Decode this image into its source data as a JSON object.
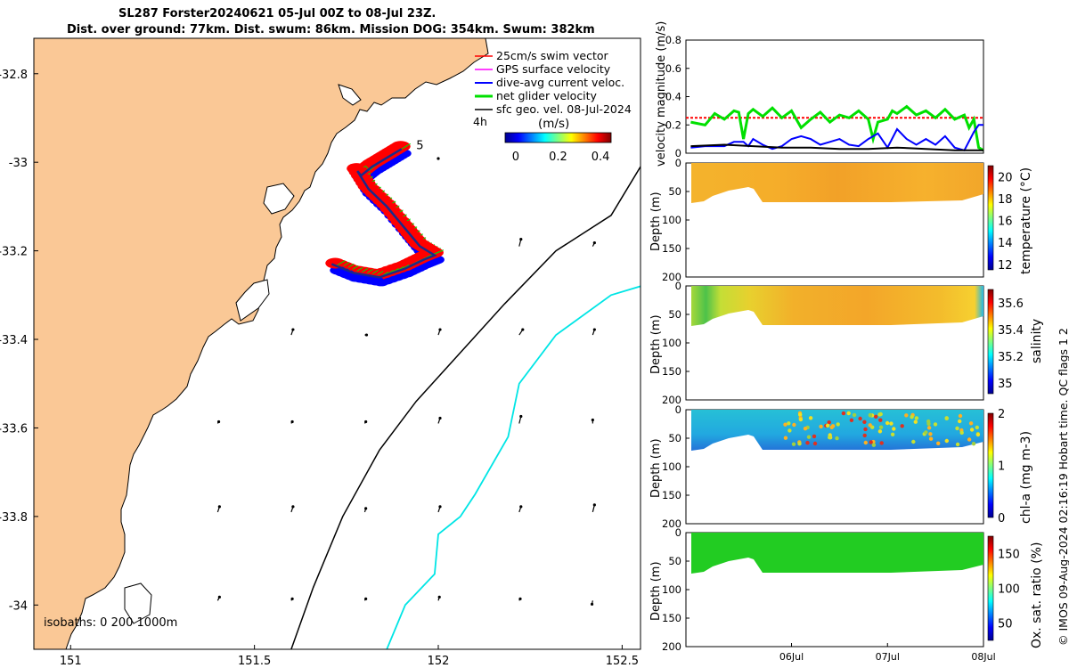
{
  "title": {
    "line1": "SL287 Forster20240621 05-Jul 00Z to 08-Jul 23Z.",
    "line2": "Dist. over ground: 77km. Dist. swum: 86km. Mission DOG: 354km. Swum: 382km"
  },
  "credit": "© IMOS 09-Aug-2024 02:16:19 Hobart time. QC flags 1  2",
  "colors": {
    "land": "#fac896",
    "swim": "#ff0000",
    "gps": "#ff00ff",
    "diveavg": "#0000ff",
    "netglider": "#00e000",
    "geo": "#000000",
    "isobath200": "#000000",
    "isobath1000": "#00e5e5",
    "track": "#1a2a8a"
  },
  "chart_data": [
    {
      "type": "map",
      "name": "glider-track-map",
      "xlim": [
        150.9,
        152.55
      ],
      "ylim": [
        -34.1,
        -32.72
      ],
      "xticks": [
        151,
        151.5,
        152,
        152.5
      ],
      "xtick_labels": [
        "151",
        "151.5",
        "152",
        "152.5"
      ],
      "yticks": [
        -32.8,
        -33,
        -33.2,
        -33.4,
        -33.6,
        -33.8,
        -34
      ],
      "ytick_labels": [
        "-32.8",
        "-33",
        "-33.2",
        "-33.4",
        "-33.6",
        "-33.8",
        "-34"
      ],
      "legend": [
        {
          "key": "swim",
          "label": "25cm/s swim vector"
        },
        {
          "key": "gps",
          "label": "GPS surface velocity"
        },
        {
          "key": "diveavg",
          "label": "dive-avg current veloc."
        },
        {
          "key": "netglider",
          "label": "net glider velocity"
        },
        {
          "key": "geo",
          "label": "sfc geo. vel. 08-Jul-2024"
        }
      ],
      "legend_placement": "top-right",
      "colorbar": {
        "label": "(m/s)",
        "prefix": "4h",
        "ticks": [
          0,
          0.2,
          0.4
        ],
        "tick_labels": [
          "0",
          "0.2",
          "0.4"
        ],
        "range": [
          -0.05,
          0.45
        ]
      },
      "track_labels": [
        {
          "text": "5",
          "lon": 151.94,
          "lat": -32.97
        }
      ],
      "isobaths_label": "isobaths: 0   200  1000m",
      "track": [
        [
          151.9,
          -32.97
        ],
        [
          151.86,
          -32.99
        ],
        [
          151.82,
          -33.01
        ],
        [
          151.79,
          -33.03
        ],
        [
          151.78,
          -33.02
        ],
        [
          151.81,
          -33.06
        ],
        [
          151.86,
          -33.1
        ],
        [
          151.91,
          -33.15
        ],
        [
          151.95,
          -33.19
        ],
        [
          151.99,
          -33.21
        ],
        [
          151.96,
          -33.22
        ],
        [
          151.91,
          -33.24
        ],
        [
          151.84,
          -33.26
        ],
        [
          151.77,
          -33.25
        ],
        [
          151.71,
          -33.23
        ]
      ],
      "isobath_200": [
        [
          151.6,
          -34.1
        ],
        [
          151.66,
          -33.96
        ],
        [
          151.74,
          -33.8
        ],
        [
          151.84,
          -33.65
        ],
        [
          151.94,
          -33.54
        ],
        [
          152.06,
          -33.43
        ],
        [
          152.18,
          -33.32
        ],
        [
          152.32,
          -33.2
        ],
        [
          152.47,
          -33.12
        ],
        [
          152.55,
          -33.01
        ]
      ],
      "isobath_1000": [
        [
          151.86,
          -34.1
        ],
        [
          151.91,
          -34.0
        ],
        [
          151.99,
          -33.93
        ],
        [
          152.0,
          -33.84
        ],
        [
          152.06,
          -33.8
        ],
        [
          152.1,
          -33.75
        ],
        [
          152.19,
          -33.62
        ],
        [
          152.22,
          -33.5
        ],
        [
          152.32,
          -33.39
        ],
        [
          152.47,
          -33.3
        ],
        [
          152.55,
          -33.28
        ]
      ],
      "geo_vectors": [
        {
          "lon": 152.0,
          "lat": -32.99,
          "u": 0.0,
          "v": -0.02
        },
        {
          "lon": 152.42,
          "lat": -33.19,
          "u": 0.05,
          "v": 0.1
        },
        {
          "lon": 152.22,
          "lat": -33.19,
          "u": 0.05,
          "v": 0.2
        },
        {
          "lon": 151.6,
          "lat": -33.39,
          "u": 0.05,
          "v": 0.15
        },
        {
          "lon": 151.8,
          "lat": -33.39,
          "u": 0.05,
          "v": 0.0
        },
        {
          "lon": 152.0,
          "lat": -33.39,
          "u": 0.05,
          "v": 0.15
        },
        {
          "lon": 152.22,
          "lat": -33.39,
          "u": 0.1,
          "v": 0.15
        },
        {
          "lon": 152.42,
          "lat": -33.39,
          "u": 0.05,
          "v": 0.15
        },
        {
          "lon": 151.4,
          "lat": -33.59,
          "u": 0.03,
          "v": 0.05
        },
        {
          "lon": 151.6,
          "lat": -33.59,
          "u": 0.03,
          "v": 0.05
        },
        {
          "lon": 151.8,
          "lat": -33.59,
          "u": 0.03,
          "v": 0.05
        },
        {
          "lon": 152.0,
          "lat": -33.59,
          "u": 0.05,
          "v": 0.15
        },
        {
          "lon": 152.22,
          "lat": -33.59,
          "u": 0.05,
          "v": 0.2
        },
        {
          "lon": 152.42,
          "lat": -33.59,
          "u": 0.0,
          "v": 0.1
        },
        {
          "lon": 151.4,
          "lat": -33.79,
          "u": 0.05,
          "v": 0.15
        },
        {
          "lon": 151.6,
          "lat": -33.79,
          "u": 0.05,
          "v": 0.15
        },
        {
          "lon": 151.8,
          "lat": -33.79,
          "u": 0.03,
          "v": 0.1
        },
        {
          "lon": 152.0,
          "lat": -33.79,
          "u": 0.05,
          "v": 0.15
        },
        {
          "lon": 152.22,
          "lat": -33.79,
          "u": 0.05,
          "v": 0.15
        },
        {
          "lon": 152.42,
          "lat": -33.79,
          "u": 0.05,
          "v": 0.2
        },
        {
          "lon": 151.4,
          "lat": -33.99,
          "u": 0.05,
          "v": 0.1
        },
        {
          "lon": 151.6,
          "lat": -33.99,
          "u": 0.03,
          "v": 0.05
        },
        {
          "lon": 151.8,
          "lat": -33.99,
          "u": 0.03,
          "v": 0.05
        },
        {
          "lon": 152.0,
          "lat": -33.99,
          "u": 0.03,
          "v": 0.1
        },
        {
          "lon": 152.22,
          "lat": -33.99,
          "u": 0.03,
          "v": 0.05
        },
        {
          "lon": 152.42,
          "lat": -33.99,
          "u": -0.02,
          "v": -0.1
        }
      ]
    },
    {
      "type": "line",
      "name": "velocity-magnitude",
      "ylabel": "velocity magnitude (m/s)",
      "ylim": [
        0,
        0.8
      ],
      "yticks": [
        0,
        0.2,
        0.4,
        0.6,
        0.8
      ],
      "ytick_labels": [
        "0",
        "0.2",
        "0.4",
        "0.6",
        "0.8"
      ],
      "xlim": [
        4.9,
        8.0
      ],
      "series": [
        {
          "name": "swim",
          "color": "#ff0000",
          "dashed": true,
          "x": [
            4.9,
            8.0
          ],
          "y": [
            0.25,
            0.25
          ]
        },
        {
          "name": "net glider velocity",
          "color": "#00e000",
          "x": [
            4.95,
            5.1,
            5.2,
            5.3,
            5.4,
            5.45,
            5.5,
            5.55,
            5.6,
            5.7,
            5.8,
            5.9,
            6.0,
            6.1,
            6.2,
            6.3,
            6.4,
            6.5,
            6.6,
            6.7,
            6.8,
            6.85,
            6.9,
            7.0,
            7.05,
            7.1,
            7.2,
            7.3,
            7.4,
            7.5,
            7.6,
            7.7,
            7.8,
            7.85,
            7.9,
            7.95,
            8.0
          ],
          "y": [
            0.22,
            0.2,
            0.28,
            0.24,
            0.3,
            0.29,
            0.1,
            0.28,
            0.31,
            0.26,
            0.32,
            0.25,
            0.3,
            0.18,
            0.24,
            0.29,
            0.22,
            0.27,
            0.25,
            0.3,
            0.24,
            0.1,
            0.22,
            0.24,
            0.3,
            0.28,
            0.33,
            0.27,
            0.3,
            0.25,
            0.31,
            0.24,
            0.27,
            0.18,
            0.24,
            0.04,
            0.02
          ]
        },
        {
          "name": "dive-avg current veloc.",
          "color": "#0000ff",
          "x": [
            4.95,
            5.1,
            5.3,
            5.4,
            5.5,
            5.55,
            5.6,
            5.7,
            5.8,
            5.9,
            6.0,
            6.1,
            6.2,
            6.3,
            6.4,
            6.5,
            6.6,
            6.7,
            6.8,
            6.9,
            7.0,
            7.1,
            7.2,
            7.3,
            7.4,
            7.5,
            7.6,
            7.7,
            7.8,
            7.9,
            7.95,
            8.0
          ],
          "y": [
            0.04,
            0.05,
            0.05,
            0.08,
            0.08,
            0.05,
            0.1,
            0.06,
            0.03,
            0.05,
            0.1,
            0.12,
            0.1,
            0.06,
            0.08,
            0.1,
            0.06,
            0.05,
            0.1,
            0.14,
            0.04,
            0.17,
            0.1,
            0.06,
            0.1,
            0.06,
            0.12,
            0.04,
            0.02,
            0.15,
            0.2,
            0.2
          ]
        },
        {
          "name": "sfc geo. vel.",
          "color": "#000000",
          "x": [
            4.95,
            5.3,
            5.6,
            5.9,
            6.2,
            6.5,
            6.8,
            7.1,
            7.4,
            7.7,
            8.0
          ],
          "y": [
            0.05,
            0.06,
            0.05,
            0.04,
            0.04,
            0.03,
            0.03,
            0.04,
            0.03,
            0.02,
            0.02
          ]
        }
      ]
    },
    {
      "type": "heatmap",
      "name": "temperature-section",
      "ylabel": "Depth (m)",
      "ylim": [
        200,
        0
      ],
      "yticks": [
        0,
        50,
        100,
        150,
        200
      ],
      "ytick_labels": [
        "0",
        "50",
        "100",
        "150",
        "200"
      ],
      "cbar_label": "temperature (°C)",
      "cbar_ticks": [
        12,
        14,
        16,
        18,
        20
      ],
      "cbar_tick_labels": [
        "12",
        "14",
        "16",
        "18",
        "20"
      ],
      "cbar_range": [
        11.5,
        21
      ]
    },
    {
      "type": "heatmap",
      "name": "salinity-section",
      "ylabel": "Depth (m)",
      "ylim": [
        200,
        0
      ],
      "yticks": [
        0,
        50,
        100,
        150,
        200
      ],
      "ytick_labels": [
        "0",
        "50",
        "100",
        "150",
        "200"
      ],
      "cbar_label": "salinity",
      "cbar_ticks": [
        35,
        35.2,
        35.4,
        35.6
      ],
      "cbar_tick_labels": [
        "35",
        "35.2",
        "35.4",
        "35.6"
      ],
      "cbar_range": [
        34.92,
        35.7
      ]
    },
    {
      "type": "heatmap",
      "name": "chla-section",
      "ylabel": "Depth (m)",
      "ylim": [
        200,
        0
      ],
      "yticks": [
        0,
        50,
        100,
        150,
        200
      ],
      "ytick_labels": [
        "0",
        "50",
        "100",
        "150",
        "200"
      ],
      "cbar_label": "chl-a (mg m-3)",
      "cbar_ticks": [
        0,
        1,
        2
      ],
      "cbar_tick_labels": [
        "0",
        "1",
        "2"
      ],
      "cbar_range": [
        0,
        2
      ]
    },
    {
      "type": "heatmap",
      "name": "oxygen-section",
      "ylabel": "Depth (m)",
      "ylim": [
        200,
        0
      ],
      "yticks": [
        0,
        50,
        100,
        150,
        200
      ],
      "ytick_labels": [
        "0",
        "50",
        "100",
        "150",
        "200"
      ],
      "cbar_label": "Ox. sat. ratio (%)",
      "cbar_ticks": [
        50,
        100,
        150
      ],
      "cbar_tick_labels": [
        "50",
        "100",
        "150"
      ],
      "cbar_range": [
        25,
        175
      ],
      "xticks": [
        6,
        7,
        8
      ],
      "xtick_labels": [
        "06Jul",
        "07Jul",
        "08Jul"
      ]
    }
  ]
}
